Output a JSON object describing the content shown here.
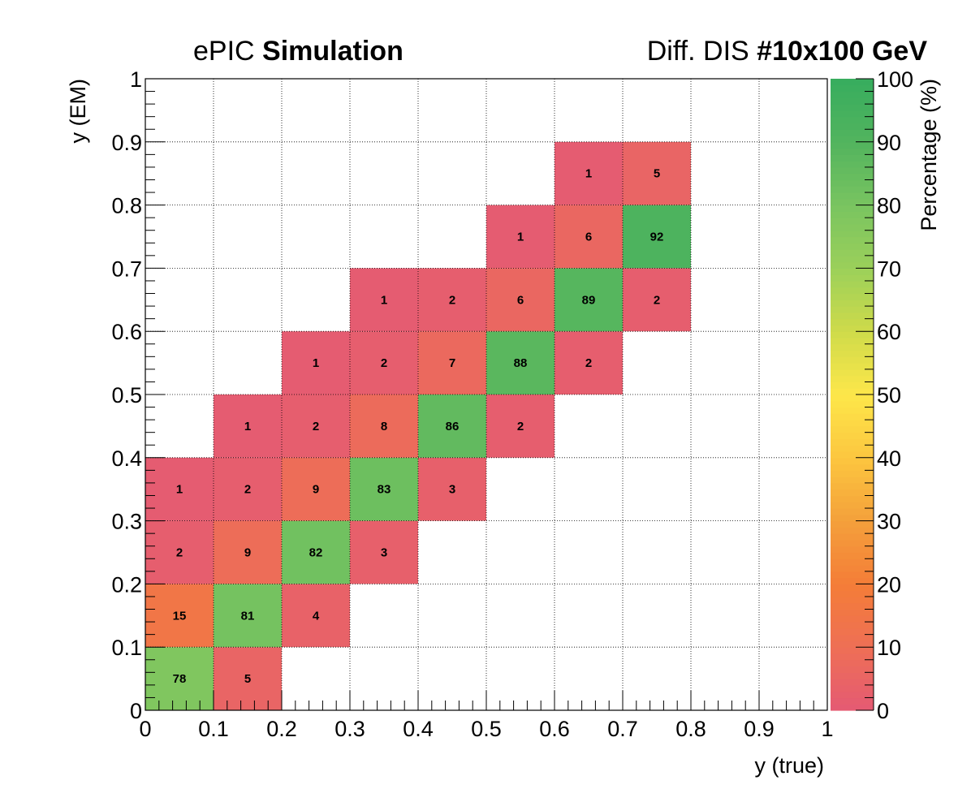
{
  "header": {
    "left_normal": "ePIC",
    "left_bold": "Simulation",
    "right_normal": "Diff. DIS",
    "right_bold": "#10x100 GeV"
  },
  "chart_data": {
    "type": "heatmap",
    "xlabel": "y (true)",
    "ylabel": "y (EM)",
    "zlabel": "Percentage (%)",
    "xlim": [
      0,
      1
    ],
    "ylim": [
      0,
      1
    ],
    "zlim": [
      0,
      100
    ],
    "x_ticks": [
      "0",
      "0.1",
      "0.2",
      "0.3",
      "0.4",
      "0.5",
      "0.6",
      "0.7",
      "0.8",
      "0.9",
      "1"
    ],
    "y_ticks": [
      "0",
      "0.1",
      "0.2",
      "0.3",
      "0.4",
      "0.5",
      "0.6",
      "0.7",
      "0.8",
      "0.9",
      "1"
    ],
    "z_ticks": [
      "0",
      "10",
      "20",
      "30",
      "40",
      "50",
      "60",
      "70",
      "80",
      "90",
      "100"
    ],
    "grid": true,
    "bin_width": 0.1,
    "colorscale": [
      "#e45a74",
      "#ee6f55",
      "#f47d38",
      "#f4a03b",
      "#fcc63f",
      "#fde74a",
      "#cfdb4a",
      "#9bd05a",
      "#79c460",
      "#52b45e",
      "#37ad5e"
    ],
    "cells": [
      {
        "x": 0.0,
        "y": 0.0,
        "value": 78
      },
      {
        "x": 0.1,
        "y": 0.0,
        "value": 5
      },
      {
        "x": 0.0,
        "y": 0.1,
        "value": 15
      },
      {
        "x": 0.1,
        "y": 0.1,
        "value": 81
      },
      {
        "x": 0.2,
        "y": 0.1,
        "value": 4
      },
      {
        "x": 0.0,
        "y": 0.2,
        "value": 2
      },
      {
        "x": 0.1,
        "y": 0.2,
        "value": 9
      },
      {
        "x": 0.2,
        "y": 0.2,
        "value": 82
      },
      {
        "x": 0.3,
        "y": 0.2,
        "value": 3
      },
      {
        "x": 0.0,
        "y": 0.3,
        "value": 1
      },
      {
        "x": 0.1,
        "y": 0.3,
        "value": 2
      },
      {
        "x": 0.2,
        "y": 0.3,
        "value": 9
      },
      {
        "x": 0.3,
        "y": 0.3,
        "value": 83
      },
      {
        "x": 0.4,
        "y": 0.3,
        "value": 3
      },
      {
        "x": 0.1,
        "y": 0.4,
        "value": 1
      },
      {
        "x": 0.2,
        "y": 0.4,
        "value": 2
      },
      {
        "x": 0.3,
        "y": 0.4,
        "value": 8
      },
      {
        "x": 0.4,
        "y": 0.4,
        "value": 86
      },
      {
        "x": 0.5,
        "y": 0.4,
        "value": 2
      },
      {
        "x": 0.2,
        "y": 0.5,
        "value": 1
      },
      {
        "x": 0.3,
        "y": 0.5,
        "value": 2
      },
      {
        "x": 0.4,
        "y": 0.5,
        "value": 7
      },
      {
        "x": 0.5,
        "y": 0.5,
        "value": 88
      },
      {
        "x": 0.6,
        "y": 0.5,
        "value": 2
      },
      {
        "x": 0.3,
        "y": 0.6,
        "value": 1
      },
      {
        "x": 0.4,
        "y": 0.6,
        "value": 2
      },
      {
        "x": 0.5,
        "y": 0.6,
        "value": 6
      },
      {
        "x": 0.6,
        "y": 0.6,
        "value": 89
      },
      {
        "x": 0.7,
        "y": 0.6,
        "value": 2
      },
      {
        "x": 0.5,
        "y": 0.7,
        "value": 1
      },
      {
        "x": 0.6,
        "y": 0.7,
        "value": 6
      },
      {
        "x": 0.7,
        "y": 0.7,
        "value": 92
      },
      {
        "x": 0.6,
        "y": 0.8,
        "value": 1
      },
      {
        "x": 0.7,
        "y": 0.8,
        "value": 5
      }
    ]
  }
}
